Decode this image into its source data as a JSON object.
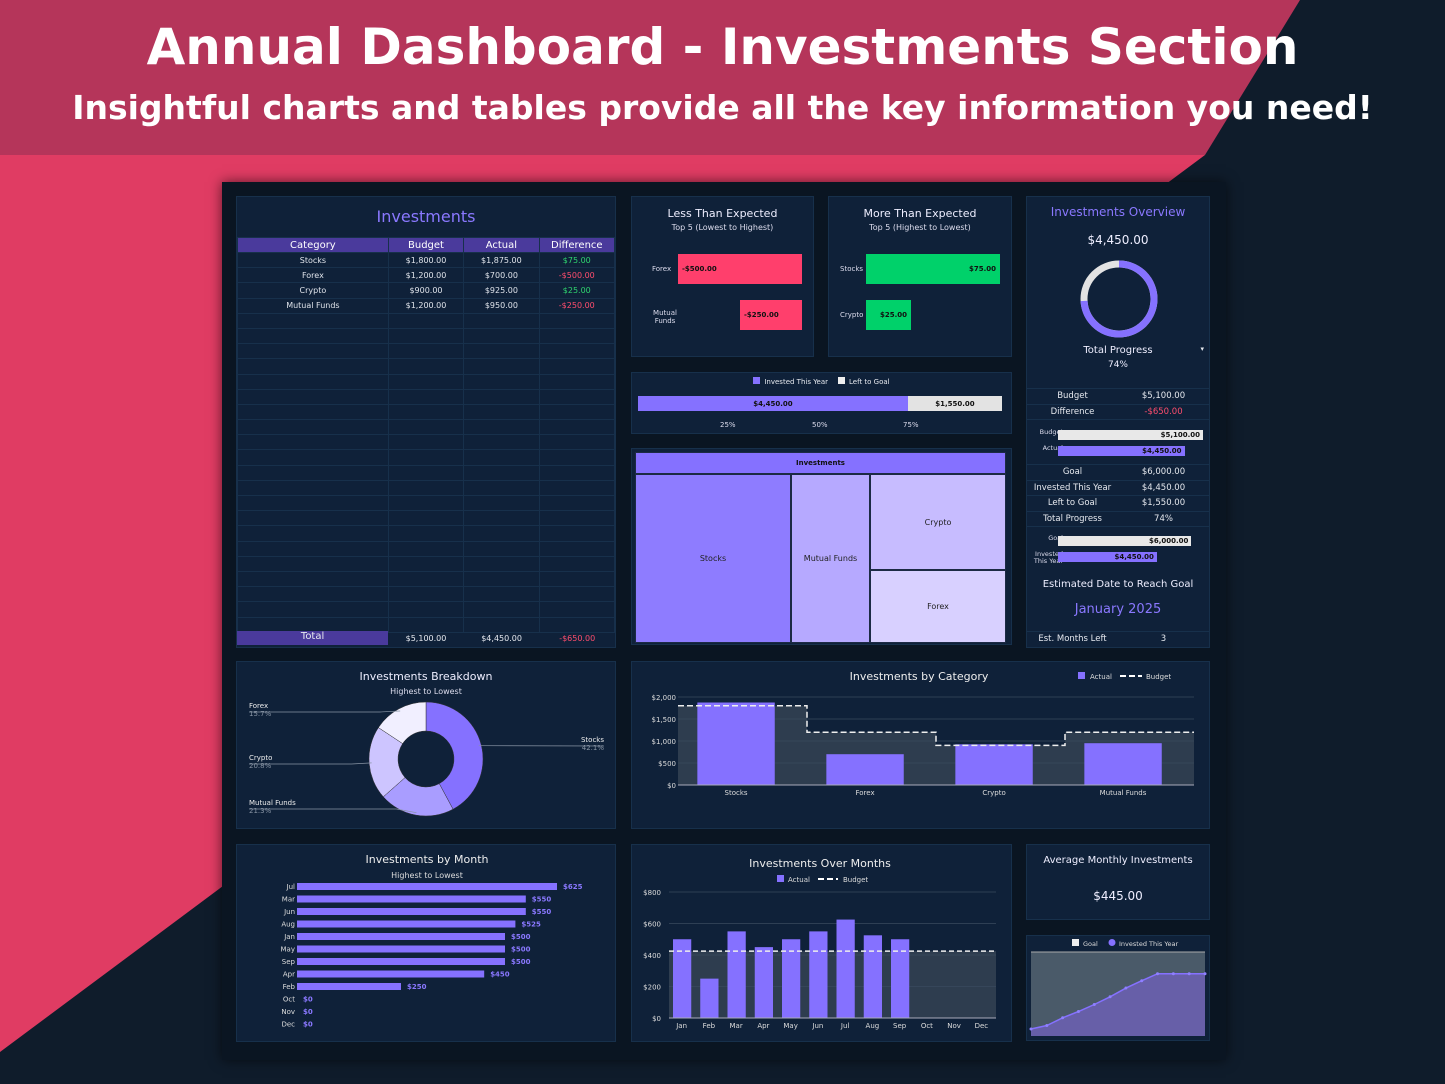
{
  "header": {
    "title": "Annual Dashboard - Investments Section",
    "subtitle": "Insightful charts and tables provide all the key information you need!"
  },
  "colors": {
    "accent": "#8571ff",
    "positive": "#2fd46e",
    "negative": "#ff4d6d",
    "panel": "#0f2139"
  },
  "table": {
    "title": "Investments",
    "columns": [
      "Category",
      "Budget",
      "Actual",
      "Difference"
    ],
    "rows": [
      [
        "Stocks",
        "$1,800.00",
        "$1,875.00",
        "$75.00"
      ],
      [
        "Forex",
        "$1,200.00",
        "$700.00",
        "-$500.00"
      ],
      [
        "Crypto",
        "$900.00",
        "$925.00",
        "$25.00"
      ],
      [
        "Mutual Funds",
        "$1,200.00",
        "$950.00",
        "-$250.00"
      ]
    ],
    "total": [
      "Total",
      "$5,100.00",
      "$4,450.00",
      "-$650.00"
    ]
  },
  "less": {
    "title": "Less Than Expected",
    "subtitle": "Top 5 (Lowest to Highest)",
    "items": [
      {
        "label": "Forex",
        "value": "-$500.00",
        "amount": 500
      },
      {
        "label": "Mutual Funds",
        "value": "-$250.00",
        "amount": 250
      }
    ]
  },
  "more": {
    "title": "More Than Expected",
    "subtitle": "Top 5 (Highest to Lowest)",
    "items": [
      {
        "label": "Stocks",
        "value": "$75.00",
        "amount": 75
      },
      {
        "label": "Crypto",
        "value": "$25.00",
        "amount": 25
      }
    ]
  },
  "goalbar": {
    "legend": [
      "Invested This Year",
      "Left to Goal"
    ],
    "invested": "$4,450.00",
    "left": "$1,550.00",
    "invested_fraction": 0.7417,
    "ticks": [
      "25%",
      "50%",
      "75%"
    ]
  },
  "treemap": {
    "title": "Investments",
    "items": [
      "Stocks",
      "Mutual Funds",
      "Crypto",
      "Forex"
    ]
  },
  "overview": {
    "title": "Investments Overview",
    "amount": "$4,450.00",
    "progress_label": "Total Progress",
    "progress": "74%",
    "progress_value": 0.74,
    "rows1": [
      [
        "Budget",
        "$5,100.00"
      ],
      [
        "Difference",
        "-$650.00"
      ]
    ],
    "bars1": [
      {
        "label": "Budget",
        "value": "$5,100.00"
      },
      {
        "label": "Actual",
        "value": "$4,450.00"
      }
    ],
    "rows2": [
      [
        "Goal",
        "$6,000.00"
      ],
      [
        "Invested This Year",
        "$4,450.00"
      ],
      [
        "Left to Goal",
        "$1,550.00"
      ],
      [
        "Total Progress",
        "74%"
      ]
    ],
    "bars2": [
      {
        "label": "Goal",
        "value": "$6,000.00"
      },
      {
        "label": "Invested This Year",
        "value": "$4,450.00"
      }
    ],
    "est_label": "Estimated Date to Reach Goal",
    "est_date": "January 2025",
    "months_left_label": "Est. Months Left",
    "months_left": "3"
  },
  "avg": {
    "title": "Average Monthly Investments",
    "value": "$445.00"
  },
  "chart_data": [
    {
      "type": "pie",
      "title": "Investments Breakdown",
      "subtitle": "Highest to Lowest",
      "categories": [
        "Stocks",
        "Mutual Funds",
        "Crypto",
        "Forex"
      ],
      "values": [
        42.1,
        21.3,
        20.8,
        15.7
      ],
      "labels": [
        "42.1%",
        "21.3%",
        "20.8%",
        "15.7%"
      ]
    },
    {
      "type": "bar",
      "title": "Investments by Category",
      "categories": [
        "Stocks",
        "Forex",
        "Crypto",
        "Mutual Funds"
      ],
      "series": [
        {
          "name": "Actual",
          "values": [
            1875,
            700,
            925,
            950
          ]
        },
        {
          "name": "Budget",
          "values": [
            1800,
            1200,
            900,
            1200
          ]
        }
      ],
      "yticks": [
        "$0",
        "$500",
        "$1,000",
        "$1,500",
        "$2,000"
      ],
      "ylim": [
        0,
        2000
      ],
      "legend": "top-right"
    },
    {
      "type": "bar",
      "title": "Investments by Month",
      "subtitle": "Highest to Lowest",
      "orientation": "horizontal",
      "categories": [
        "Jul",
        "Mar",
        "Jun",
        "Aug",
        "Jan",
        "May",
        "Sep",
        "Apr",
        "Feb",
        "Oct",
        "Nov",
        "Dec"
      ],
      "values": [
        625,
        550,
        550,
        525,
        500,
        500,
        500,
        450,
        250,
        0,
        0,
        0
      ],
      "labels": [
        "$625",
        "$550",
        "$550",
        "$525",
        "$500",
        "$500",
        "$500",
        "$450",
        "$250",
        "$0",
        "$0",
        "$0"
      ]
    },
    {
      "type": "bar",
      "title": "Investments Over Months",
      "categories": [
        "Jan",
        "Feb",
        "Mar",
        "Apr",
        "May",
        "Jun",
        "Jul",
        "Aug",
        "Sep",
        "Oct",
        "Nov",
        "Dec"
      ],
      "series": [
        {
          "name": "Actual",
          "values": [
            500,
            250,
            550,
            450,
            500,
            550,
            625,
            525,
            500,
            0,
            0,
            0
          ]
        },
        {
          "name": "Budget",
          "values": [
            425,
            425,
            425,
            425,
            425,
            425,
            425,
            425,
            425,
            425,
            425,
            425
          ]
        }
      ],
      "yticks": [
        "$0",
        "$200",
        "$400",
        "$600",
        "$800"
      ],
      "ylim": [
        0,
        800
      ],
      "legend": "top"
    },
    {
      "type": "area",
      "legend": [
        "Goal",
        "Invested This Year"
      ],
      "goal": 6000,
      "values": [
        500,
        750,
        1300,
        1750,
        2250,
        2800,
        3425,
        3950,
        4450,
        4450,
        4450,
        4450
      ],
      "ylim": [
        0,
        6000
      ]
    }
  ]
}
